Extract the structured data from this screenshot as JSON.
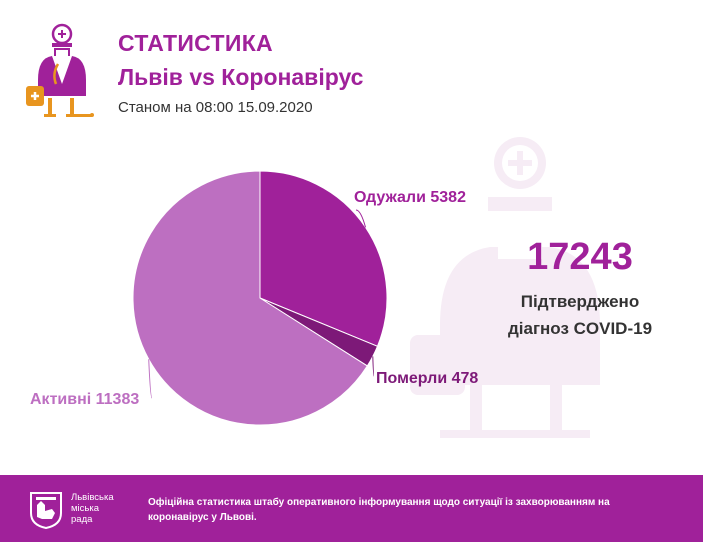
{
  "header": {
    "title": "СТАТИСТИКА",
    "subtitle": "Львів vs Коронавірус",
    "date": "Станом на 08:00 15.09.2020"
  },
  "colors": {
    "accent": "#a0219a",
    "recovered": "#a0219a",
    "died": "#7d1978",
    "active": "#bd6fc1",
    "watermark": "#f3e7f2"
  },
  "icons": [
    "doctor-icon",
    "doctor-watermark-icon",
    "lviv-coat-of-arms-icon"
  ],
  "chart_data": {
    "type": "pie",
    "title": "",
    "slices": [
      {
        "label": "Одужали",
        "value": 5382,
        "display": "Одужали 5382"
      },
      {
        "label": "Померли",
        "value": 478,
        "display": "Померли 478"
      },
      {
        "label": "Активні",
        "value": 11383,
        "display": "Активні 11383"
      }
    ],
    "start_angle_deg": 0,
    "direction": "clockwise"
  },
  "summary": {
    "total": "17243",
    "description_line1": "Підтверджено",
    "description_line2": "діагноз COVID-19"
  },
  "footer": {
    "org_name": "Львівська\nміська\nрада",
    "text": "Офіційна статистика штабу оперативного інформування щодо ситуації із захворюванням на коронавірус у Львові."
  }
}
